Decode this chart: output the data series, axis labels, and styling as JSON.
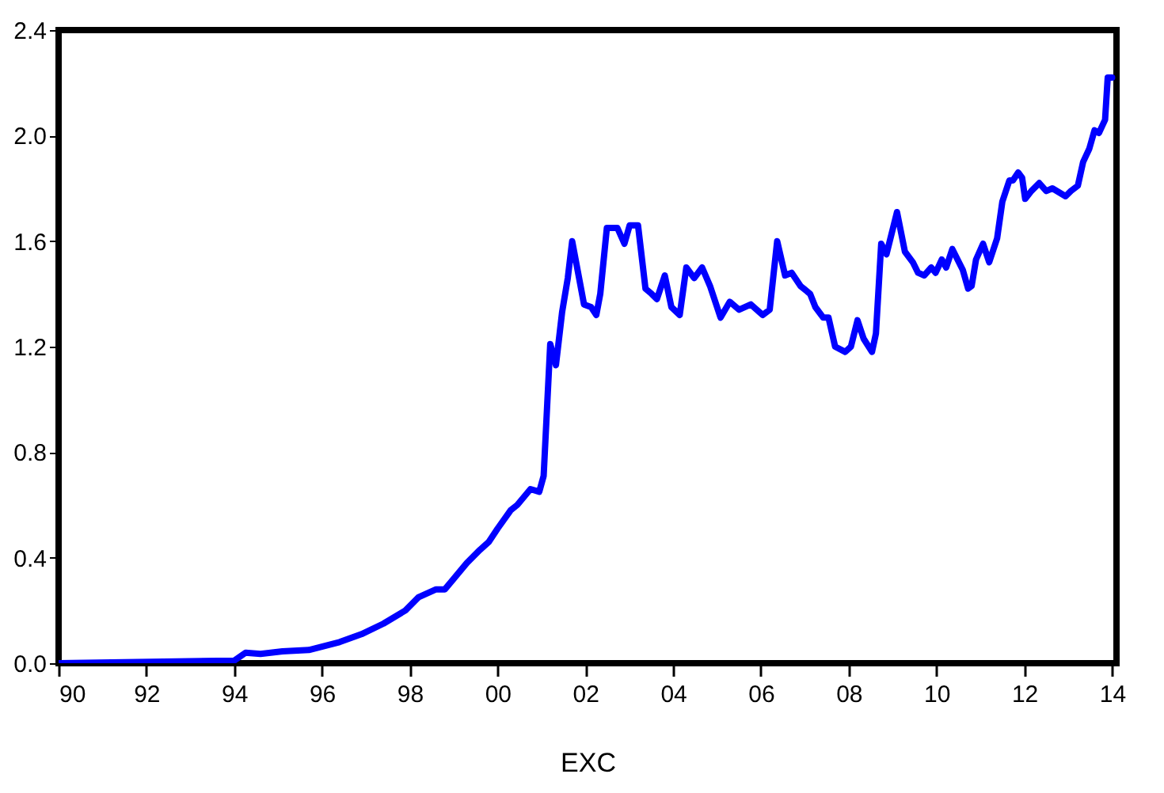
{
  "chart_data": {
    "type": "line",
    "xlabel": "EXC",
    "x": [
      1990.0,
      1994.0,
      1994.26,
      1994.6,
      1995.1,
      1995.7,
      1996.4,
      1996.9,
      1997.4,
      1997.9,
      1998.2,
      1998.6,
      1998.8,
      1999.0,
      1999.3,
      1999.6,
      1999.8,
      2000.0,
      2000.3,
      2000.45,
      2000.75,
      2000.95,
      2001.05,
      2001.2,
      2001.33,
      2001.47,
      2001.6,
      2001.7,
      2001.97,
      2002.13,
      2002.25,
      2002.34,
      2002.49,
      2002.73,
      2002.89,
      2003.01,
      2003.2,
      2003.37,
      2003.51,
      2003.63,
      2003.81,
      2003.96,
      2004.15,
      2004.3,
      2004.48,
      2004.66,
      2004.84,
      2005.08,
      2005.29,
      2005.5,
      2005.77,
      2006.04,
      2006.2,
      2006.37,
      2006.55,
      2006.7,
      2006.9,
      2007.12,
      2007.24,
      2007.42,
      2007.54,
      2007.69,
      2007.92,
      2008.05,
      2008.2,
      2008.34,
      2008.53,
      2008.62,
      2008.74,
      2008.86,
      2009.1,
      2009.28,
      2009.46,
      2009.58,
      2009.72,
      2009.88,
      2009.98,
      2010.12,
      2010.22,
      2010.36,
      2010.6,
      2010.72,
      2010.8,
      2010.9,
      2011.06,
      2011.2,
      2011.38,
      2011.5,
      2011.66,
      2011.74,
      2011.86,
      2011.95,
      2012.02,
      2012.16,
      2012.34,
      2012.5,
      2012.64,
      2012.94,
      2013.06,
      2013.22,
      2013.34,
      2013.48,
      2013.6,
      2013.7,
      2013.84,
      2013.9,
      2014.0
    ],
    "series": [
      {
        "color": "#0000ff",
        "values": [
          0.0,
          0.01,
          0.04,
          0.035,
          0.045,
          0.05,
          0.08,
          0.11,
          0.15,
          0.2,
          0.25,
          0.28,
          0.28,
          0.32,
          0.38,
          0.43,
          0.46,
          0.51,
          0.58,
          0.6,
          0.66,
          0.65,
          0.71,
          1.21,
          1.13,
          1.33,
          1.46,
          1.6,
          1.36,
          1.35,
          1.32,
          1.4,
          1.65,
          1.65,
          1.59,
          1.66,
          1.66,
          1.42,
          1.4,
          1.38,
          1.47,
          1.35,
          1.32,
          1.5,
          1.46,
          1.5,
          1.43,
          1.31,
          1.37,
          1.34,
          1.36,
          1.32,
          1.34,
          1.6,
          1.47,
          1.48,
          1.43,
          1.4,
          1.35,
          1.31,
          1.31,
          1.2,
          1.18,
          1.2,
          1.3,
          1.23,
          1.18,
          1.25,
          1.59,
          1.55,
          1.71,
          1.56,
          1.52,
          1.48,
          1.47,
          1.5,
          1.48,
          1.53,
          1.5,
          1.57,
          1.49,
          1.42,
          1.43,
          1.53,
          1.59,
          1.52,
          1.61,
          1.75,
          1.83,
          1.83,
          1.86,
          1.84,
          1.76,
          1.79,
          1.82,
          1.79,
          1.8,
          1.77,
          1.79,
          1.81,
          1.9,
          1.95,
          2.02,
          2.01,
          2.06,
          2.22,
          2.22
        ]
      }
    ],
    "xlim": [
      1990,
      2014.1
    ],
    "xticks": [
      {
        "value": 1990,
        "label": "90"
      },
      {
        "value": 1992,
        "label": "92"
      },
      {
        "value": 1994,
        "label": "94"
      },
      {
        "value": 1996,
        "label": "96"
      },
      {
        "value": 1998,
        "label": "98"
      },
      {
        "value": 2000,
        "label": "00"
      },
      {
        "value": 2002,
        "label": "02"
      },
      {
        "value": 2004,
        "label": "04"
      },
      {
        "value": 2006,
        "label": "06"
      },
      {
        "value": 2008,
        "label": "08"
      },
      {
        "value": 2010,
        "label": "10"
      },
      {
        "value": 2012,
        "label": "12"
      },
      {
        "value": 2014,
        "label": "14"
      }
    ],
    "ylim": [
      0,
      2.4
    ],
    "yticks": [
      {
        "value": 0,
        "label": "0.0"
      },
      {
        "value": 0.4,
        "label": "0.4"
      },
      {
        "value": 0.8,
        "label": "0.8"
      },
      {
        "value": 1.2,
        "label": "1.2"
      },
      {
        "value": 1.6,
        "label": "1.6"
      },
      {
        "value": 2.0,
        "label": "2.0"
      },
      {
        "value": 2.4,
        "label": "2.4"
      }
    ],
    "grid": false,
    "line_style": "solid"
  }
}
